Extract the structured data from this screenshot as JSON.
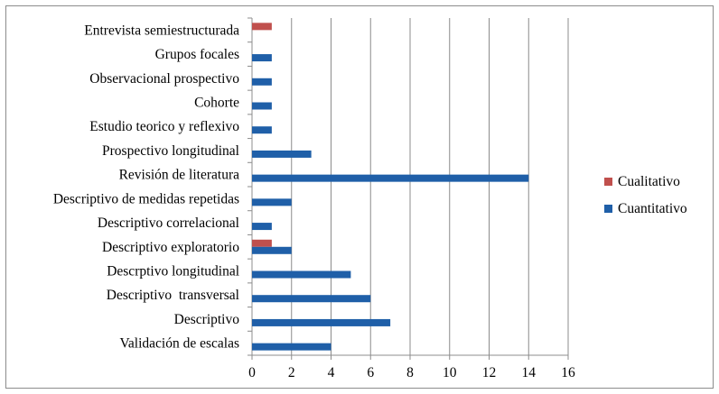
{
  "chart_data": {
    "type": "bar",
    "orientation": "horizontal",
    "categories": [
      "Entrevista semiestructurada",
      "Grupos focales",
      "Observacional prospectivo",
      "Cohorte",
      "Estudio teorico y reflexivo",
      "Prospectivo longitudinal",
      "Revisión de literatura",
      "Descriptivo de medidas repetidas",
      "Descriptivo correlacional",
      "Descriptivo exploratorio",
      "Descrptivo longitudinal",
      "Descriptivo  transversal",
      "Descriptivo",
      "Validación de escalas"
    ],
    "series": [
      {
        "name": "Cualitativo",
        "color": "#c0504d",
        "values": [
          1,
          0,
          0,
          0,
          0,
          0,
          0,
          0,
          0,
          1,
          0,
          0,
          0,
          0
        ]
      },
      {
        "name": "Cuantitativo",
        "color": "#1f5fa8",
        "values": [
          0,
          1,
          1,
          1,
          1,
          3,
          14,
          2,
          1,
          2,
          5,
          6,
          7,
          4
        ]
      }
    ],
    "xlim": [
      0,
      16
    ],
    "xticks": [
      0,
      2,
      4,
      6,
      8,
      10,
      12,
      14,
      16
    ],
    "grid": "vertical",
    "legend_position": "right",
    "title": "",
    "xlabel": "",
    "ylabel": ""
  }
}
